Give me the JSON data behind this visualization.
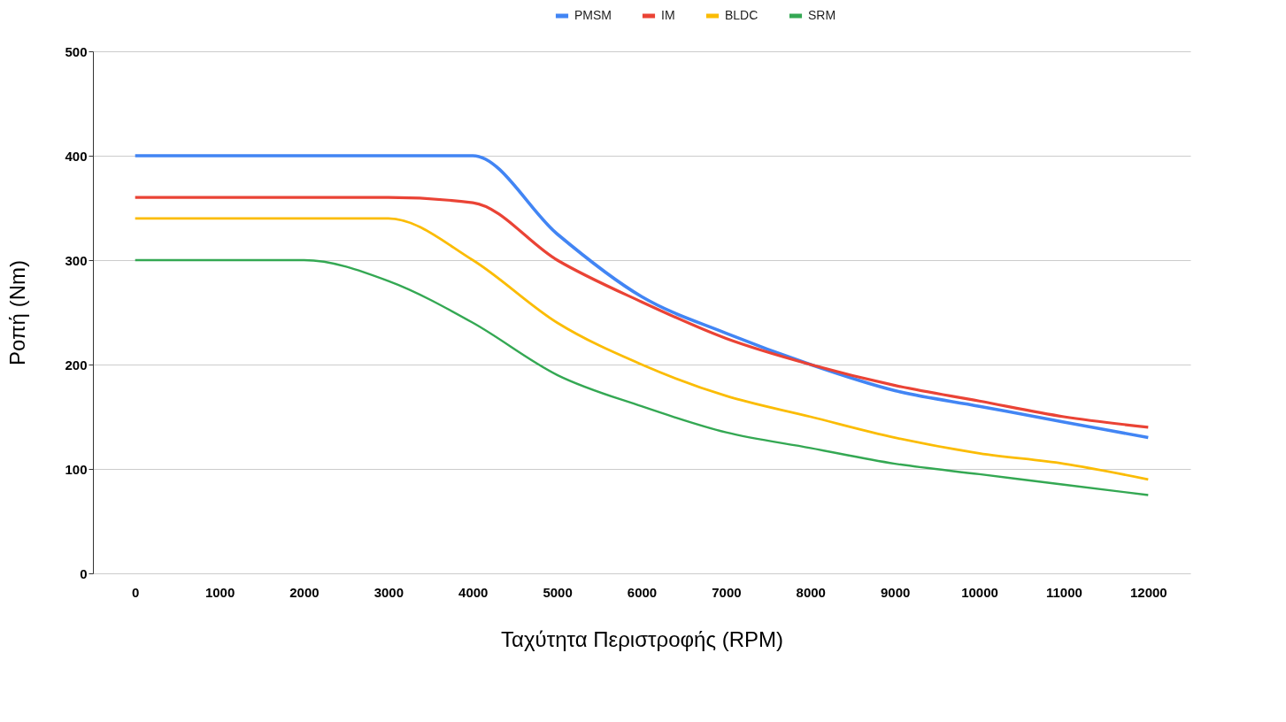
{
  "chart_data": {
    "type": "line",
    "xlabel": "Ταχύτητα Περιστροφής (RPM)",
    "ylabel": "Ροπή (Nm)",
    "categories": [
      "0",
      "1000",
      "2000",
      "3000",
      "4000",
      "5000",
      "6000",
      "7000",
      "8000",
      "9000",
      "10000",
      "11000",
      "12000"
    ],
    "series": [
      {
        "name": "PMSM",
        "color": "#4285f4",
        "values": [
          400,
          400,
          400,
          400,
          400,
          325,
          265,
          230,
          200,
          175,
          160,
          145,
          130
        ]
      },
      {
        "name": "IM",
        "color": "#ea4335",
        "values": [
          360,
          360,
          360,
          360,
          355,
          300,
          260,
          225,
          200,
          180,
          165,
          150,
          140
        ]
      },
      {
        "name": "BLDC",
        "color": "#fbbc04",
        "values": [
          340,
          340,
          340,
          340,
          300,
          240,
          200,
          170,
          150,
          130,
          115,
          105,
          90
        ]
      },
      {
        "name": "SRM",
        "color": "#34a853",
        "values": [
          300,
          300,
          300,
          280,
          240,
          190,
          160,
          135,
          120,
          105,
          95,
          85,
          75
        ]
      }
    ],
    "ylim": [
      0,
      500
    ],
    "yticks": [
      0,
      100,
      200,
      300,
      400,
      500
    ],
    "grid": "y",
    "legend": "top",
    "marker": "none",
    "line_style": "solid"
  }
}
